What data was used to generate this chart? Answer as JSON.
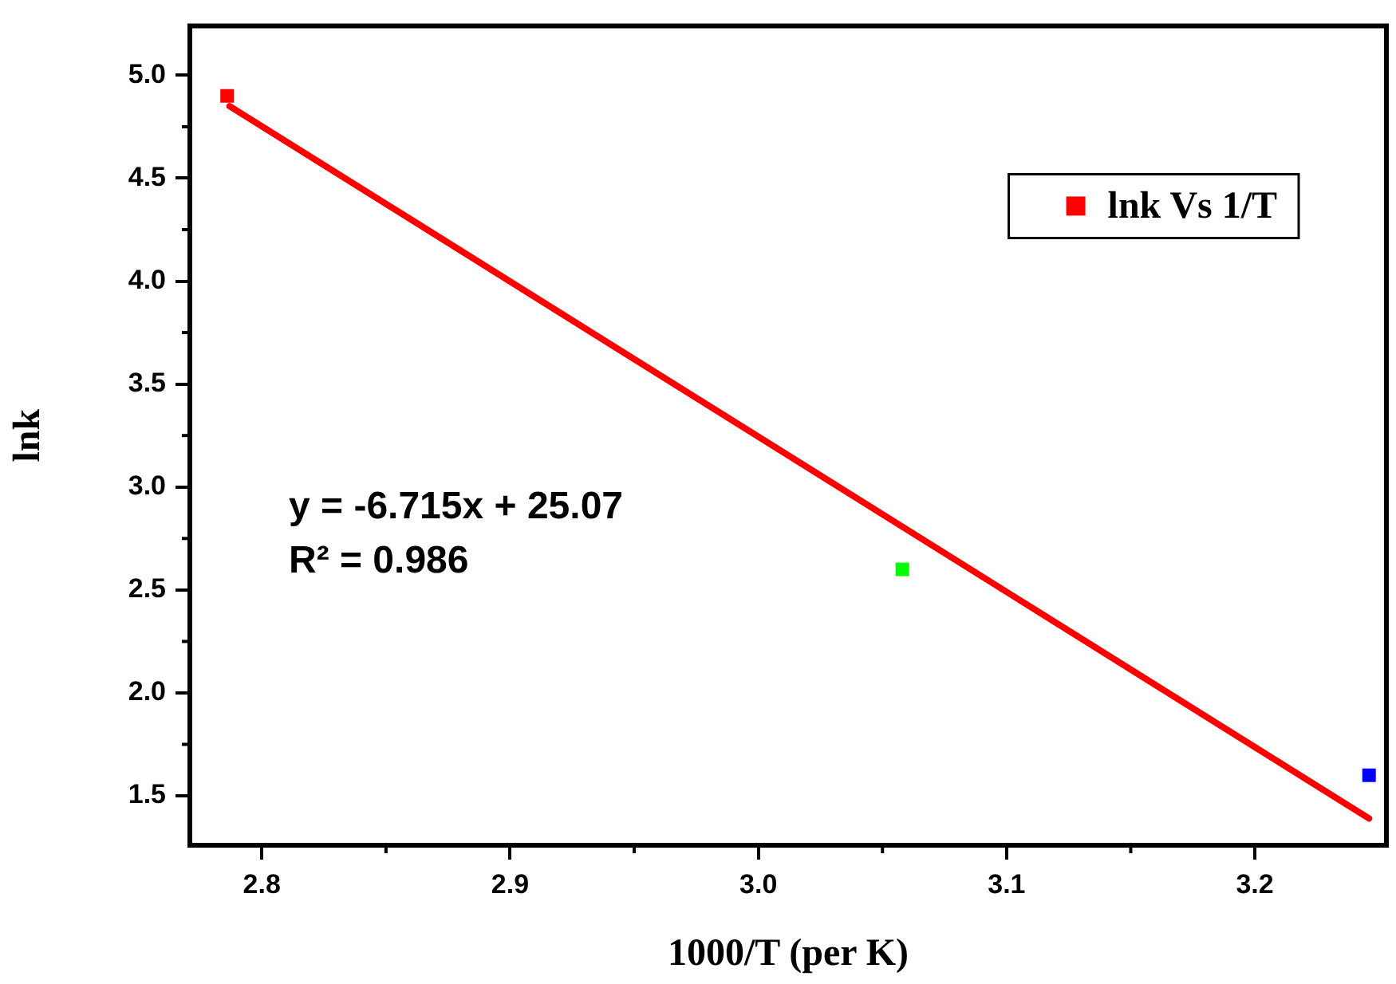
{
  "chart_data": {
    "type": "scatter",
    "xlabel": "1000/T (per K)",
    "ylabel": "lnk",
    "xlim": [
      2.771,
      3.253
    ],
    "xticks": [
      2.8,
      2.9,
      {
        "value": 3,
        "label": "3.0"
      },
      3.1,
      3.2
    ],
    "ylim": [
      1.26,
      5.24
    ],
    "yticks": [
      1.5,
      {
        "value": 2,
        "label": "2.0"
      },
      2.5,
      {
        "value": 3,
        "label": "3.0"
      },
      3.5,
      {
        "value": 4,
        "label": "4.0"
      },
      4.5,
      {
        "value": 5,
        "label": "5.0"
      }
    ],
    "series": [
      {
        "name": "lnk Vs 1/T",
        "x": [
          2.786,
          3.058,
          3.246
        ],
        "values": [
          4.9,
          2.6,
          1.6
        ],
        "color": "#ff0000",
        "colors": [
          "#ff0000",
          "#00ff00",
          "#0000ff"
        ],
        "marker": "square"
      },
      {
        "type": "line",
        "x": [
          2.787,
          3.246
        ],
        "values": [
          4.85,
          1.39
        ],
        "color": "#ff0000",
        "marker": "none",
        "line_style": "solid"
      }
    ],
    "annotations": [
      "y = -6.715x + 25.07",
      "R² = 0.986"
    ],
    "legend": "top right",
    "grid": false
  }
}
